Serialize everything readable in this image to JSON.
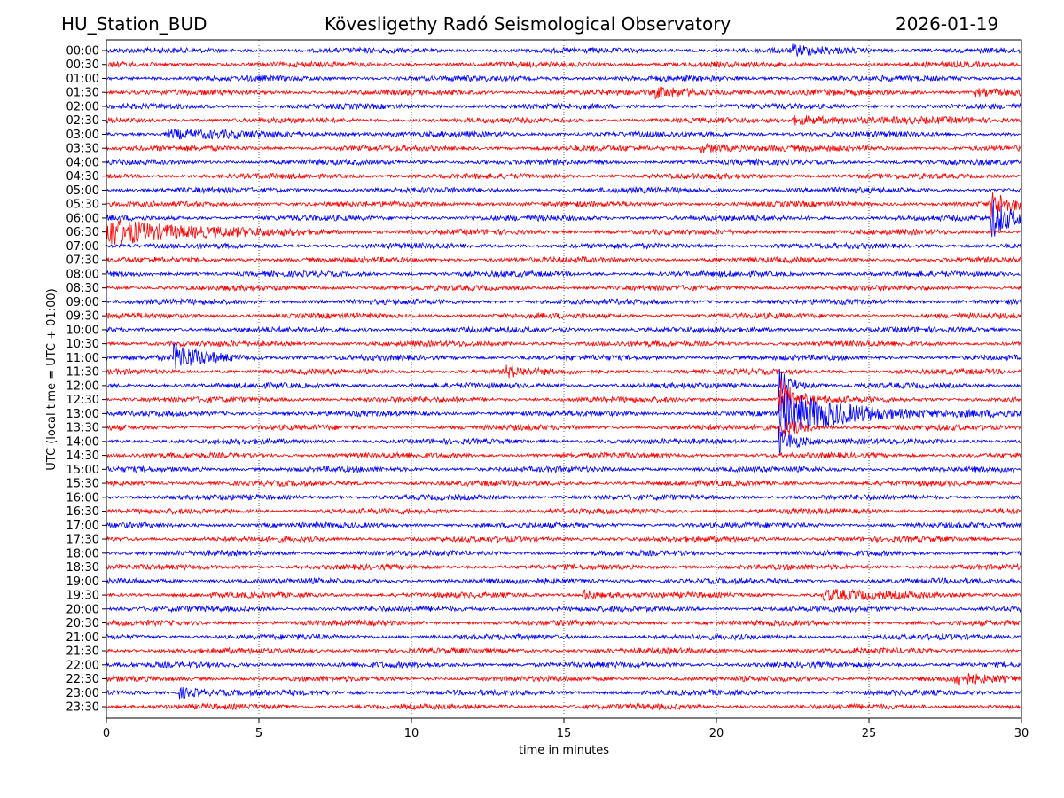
{
  "header": {
    "station": "HU_Station_BUD",
    "observatory": "Kövesligethy Radó Seismological Observatory",
    "date": "2026-01-19"
  },
  "chart_data": {
    "type": "line",
    "subtype": "helicorder",
    "title": "Kövesligethy Radó Seismological Observatory",
    "xlabel": "time in minutes",
    "ylabel": "UTC (local time = UTC + 01:00)",
    "xlim": [
      0,
      30
    ],
    "xticks": [
      "0",
      "5",
      "10",
      "15",
      "20",
      "25",
      "30"
    ],
    "grid": "vertical dotted at x ticks",
    "row_labels": [
      "00:00",
      "00:30",
      "01:00",
      "01:30",
      "02:00",
      "02:30",
      "03:00",
      "03:30",
      "04:00",
      "04:30",
      "05:00",
      "05:30",
      "06:00",
      "06:30",
      "07:00",
      "07:30",
      "08:00",
      "08:30",
      "09:00",
      "09:30",
      "10:00",
      "10:30",
      "11:00",
      "11:30",
      "12:00",
      "12:30",
      "13:00",
      "13:30",
      "14:00",
      "14:30",
      "15:00",
      "15:30",
      "16:00",
      "16:30",
      "17:00",
      "17:30",
      "18:00",
      "18:30",
      "19:00",
      "19:30",
      "20:00",
      "20:30",
      "21:00",
      "21:30",
      "22:00",
      "22:30",
      "23:00",
      "23:30"
    ],
    "colors": [
      "#0000ff",
      "#ff0000"
    ],
    "noise_level": 1.0,
    "events": [
      {
        "row": 0,
        "minute": 22.5,
        "amplitude": 1.8,
        "duration": 2.0
      },
      {
        "row": 3,
        "minute": 18.0,
        "amplitude": 1.8,
        "duration": 3.0
      },
      {
        "row": 3,
        "minute": 28.5,
        "amplitude": 1.5,
        "duration": 1.5
      },
      {
        "row": 5,
        "minute": 22.5,
        "amplitude": 1.8,
        "duration": 4.5
      },
      {
        "row": 6,
        "minute": 2.0,
        "amplitude": 1.8,
        "duration": 3.5
      },
      {
        "row": 7,
        "minute": 19.5,
        "amplitude": 1.8,
        "duration": 2.0
      },
      {
        "row": 11,
        "minute": 29.0,
        "amplitude": 6.0,
        "duration": 1.0
      },
      {
        "row": 12,
        "minute": 29.0,
        "amplitude": 9.0,
        "duration": 1.0
      },
      {
        "row": 13,
        "minute": 0.0,
        "amplitude": 7.0,
        "duration": 3.5
      },
      {
        "row": 22,
        "minute": 2.2,
        "amplitude": 6.0,
        "duration": 1.5
      },
      {
        "row": 23,
        "minute": 13.1,
        "amplitude": 2.5,
        "duration": 0.8
      },
      {
        "row": 24,
        "minute": 22.05,
        "amplitude": 8.0,
        "duration": 0.6
      },
      {
        "row": 25,
        "minute": 22.05,
        "amplitude": 10.0,
        "duration": 0.8
      },
      {
        "row": 26,
        "minute": 22.05,
        "amplitude": 10.0,
        "duration": 3.5
      },
      {
        "row": 27,
        "minute": 22.05,
        "amplitude": 5.0,
        "duration": 1.0
      },
      {
        "row": 28,
        "minute": 22.05,
        "amplitude": 7.0,
        "duration": 0.8
      },
      {
        "row": 39,
        "minute": 15.6,
        "amplitude": 2.5,
        "duration": 0.8
      },
      {
        "row": 39,
        "minute": 23.5,
        "amplitude": 2.5,
        "duration": 2.5
      },
      {
        "row": 45,
        "minute": 27.8,
        "amplitude": 2.8,
        "duration": 1.2
      },
      {
        "row": 46,
        "minute": 2.4,
        "amplitude": 2.5,
        "duration": 1.2
      }
    ]
  }
}
